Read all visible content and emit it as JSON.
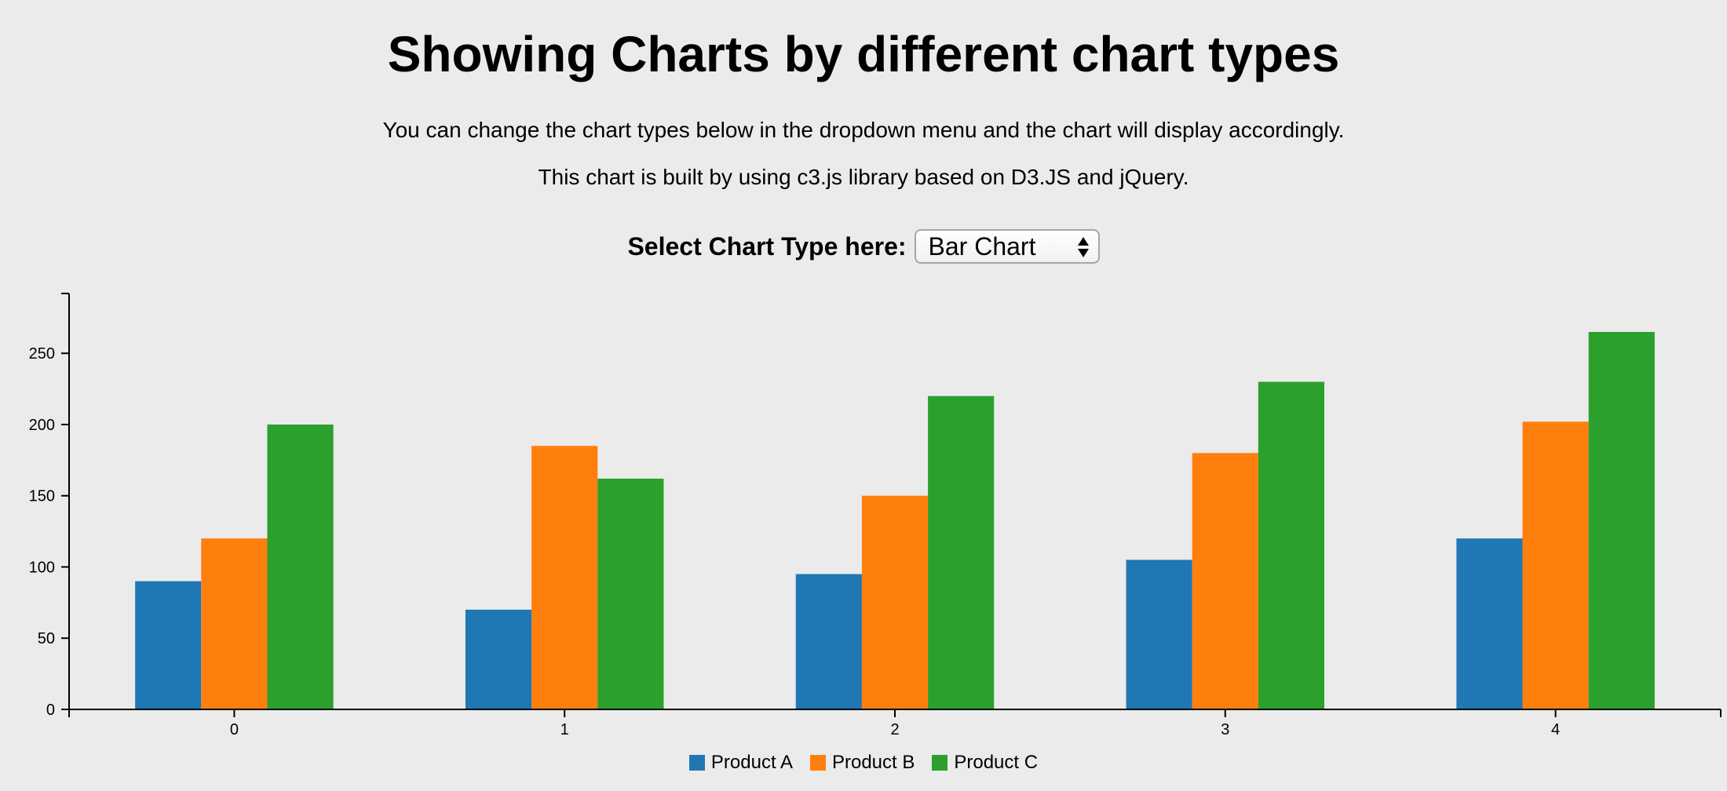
{
  "header": {
    "title": "Showing Charts by different chart types",
    "description_1": "You can change the chart types below in the dropdown menu and the chart will display accordingly.",
    "description_2": "This chart is built by using c3.js library based on D3.JS and jQuery."
  },
  "selector": {
    "label": "Select Chart Type here:",
    "selected": "Bar Chart"
  },
  "chart_data": {
    "type": "bar",
    "categories": [
      "0",
      "1",
      "2",
      "3",
      "4"
    ],
    "series": [
      {
        "name": "Product A",
        "color": "#1f77b4",
        "values": [
          90,
          70,
          95,
          105,
          120
        ]
      },
      {
        "name": "Product B",
        "color": "#ff7f0e",
        "values": [
          120,
          185,
          150,
          180,
          202
        ]
      },
      {
        "name": "Product C",
        "color": "#2ca02c",
        "values": [
          200,
          162,
          220,
          230,
          265
        ]
      }
    ],
    "yticks": [
      0,
      50,
      100,
      150,
      200,
      250
    ],
    "ylim": [
      0,
      292
    ],
    "legend_position": "bottom",
    "grid": false
  }
}
